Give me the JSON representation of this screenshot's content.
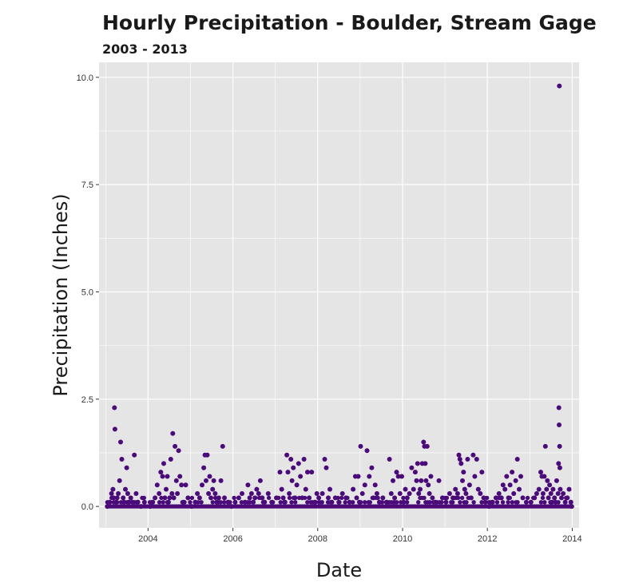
{
  "chart_data": {
    "type": "scatter",
    "title": "Hourly Precipitation - Boulder, Stream Gage",
    "subtitle": "2003 - 2013",
    "xlabel": "Date",
    "ylabel": "Precipitation (Inches)",
    "x_axis_type": "date",
    "xlim": [
      "2002-11-05",
      "2014-03-01"
    ],
    "ylim": [
      -0.5,
      10.35
    ],
    "x_ticks": [
      {
        "value": "2004-01-01",
        "label": "2004"
      },
      {
        "value": "2006-01-01",
        "label": "2006"
      },
      {
        "value": "2008-01-01",
        "label": "2008"
      },
      {
        "value": "2010-01-01",
        "label": "2010"
      },
      {
        "value": "2012-01-01",
        "label": "2012"
      },
      {
        "value": "2014-01-01",
        "label": "2014"
      }
    ],
    "y_ticks": [
      {
        "value": 0,
        "label": "0.0"
      },
      {
        "value": 2.5,
        "label": "2.5"
      },
      {
        "value": 5,
        "label": "5.0"
      },
      {
        "value": 7.5,
        "label": "7.5"
      },
      {
        "value": 10,
        "label": "10.0"
      }
    ],
    "grid": true,
    "panel_background": "#e5e5e5",
    "grid_color": "#ffffff",
    "point_color": "#4b0a7a",
    "points": [
      {
        "x": "2003-01-15",
        "y": 0.0
      },
      {
        "x": "2003-02-05",
        "y": 0.1
      },
      {
        "x": "2003-02-20",
        "y": 0.3
      },
      {
        "x": "2003-03-05",
        "y": 0.4
      },
      {
        "x": "2003-03-10",
        "y": 0.2
      },
      {
        "x": "2003-03-18",
        "y": 2.3
      },
      {
        "x": "2003-03-22",
        "y": 1.8
      },
      {
        "x": "2003-04-01",
        "y": 0.1
      },
      {
        "x": "2003-04-10",
        "y": 0.2
      },
      {
        "x": "2003-04-20",
        "y": 0.3
      },
      {
        "x": "2003-05-01",
        "y": 0.6
      },
      {
        "x": "2003-05-10",
        "y": 1.5
      },
      {
        "x": "2003-05-20",
        "y": 1.1
      },
      {
        "x": "2003-06-01",
        "y": 0.2
      },
      {
        "x": "2003-06-10",
        "y": 0.1
      },
      {
        "x": "2003-06-20",
        "y": 0.4
      },
      {
        "x": "2003-07-01",
        "y": 0.9
      },
      {
        "x": "2003-07-10",
        "y": 0.3
      },
      {
        "x": "2003-07-20",
        "y": 0.1
      },
      {
        "x": "2003-08-05",
        "y": 0.2
      },
      {
        "x": "2003-08-20",
        "y": 0.1
      },
      {
        "x": "2003-09-05",
        "y": 1.2
      },
      {
        "x": "2003-09-20",
        "y": 0.3
      },
      {
        "x": "2003-10-05",
        "y": 0.1
      },
      {
        "x": "2003-11-01",
        "y": 0.0
      },
      {
        "x": "2003-12-01",
        "y": 0.1
      },
      {
        "x": "2004-01-20",
        "y": 0.0
      },
      {
        "x": "2004-02-10",
        "y": 0.1
      },
      {
        "x": "2004-03-01",
        "y": 0.2
      },
      {
        "x": "2004-03-20",
        "y": 0.5
      },
      {
        "x": "2004-04-05",
        "y": 0.3
      },
      {
        "x": "2004-04-20",
        "y": 0.8
      },
      {
        "x": "2004-05-05",
        "y": 0.7
      },
      {
        "x": "2004-05-15",
        "y": 1.0
      },
      {
        "x": "2004-05-25",
        "y": 0.2
      },
      {
        "x": "2004-06-05",
        "y": 0.4
      },
      {
        "x": "2004-06-15",
        "y": 0.7
      },
      {
        "x": "2004-06-25",
        "y": 0.1
      },
      {
        "x": "2004-07-05",
        "y": 0.2
      },
      {
        "x": "2004-07-15",
        "y": 1.1
      },
      {
        "x": "2004-07-25",
        "y": 0.3
      },
      {
        "x": "2004-08-01",
        "y": 1.7
      },
      {
        "x": "2004-08-10",
        "y": 0.2
      },
      {
        "x": "2004-08-20",
        "y": 1.4
      },
      {
        "x": "2004-09-01",
        "y": 0.6
      },
      {
        "x": "2004-09-10",
        "y": 0.3
      },
      {
        "x": "2004-09-20",
        "y": 1.3
      },
      {
        "x": "2004-10-01",
        "y": 0.7
      },
      {
        "x": "2004-10-15",
        "y": 0.5
      },
      {
        "x": "2004-11-01",
        "y": 0.1
      },
      {
        "x": "2004-11-20",
        "y": 0.5
      },
      {
        "x": "2004-12-10",
        "y": 0.2
      },
      {
        "x": "2005-01-10",
        "y": 0.0
      },
      {
        "x": "2005-02-10",
        "y": 0.1
      },
      {
        "x": "2005-03-01",
        "y": 0.3
      },
      {
        "x": "2005-03-20",
        "y": 0.2
      },
      {
        "x": "2005-04-10",
        "y": 0.5
      },
      {
        "x": "2005-04-25",
        "y": 0.9
      },
      {
        "x": "2005-05-05",
        "y": 1.2
      },
      {
        "x": "2005-05-15",
        "y": 0.6
      },
      {
        "x": "2005-05-25",
        "y": 1.2
      },
      {
        "x": "2005-06-05",
        "y": 0.3
      },
      {
        "x": "2005-06-15",
        "y": 0.7
      },
      {
        "x": "2005-06-25",
        "y": 0.2
      },
      {
        "x": "2005-07-10",
        "y": 0.4
      },
      {
        "x": "2005-07-20",
        "y": 0.6
      },
      {
        "x": "2005-08-01",
        "y": 0.3
      },
      {
        "x": "2005-08-15",
        "y": 0.1
      },
      {
        "x": "2005-09-01",
        "y": 0.2
      },
      {
        "x": "2005-09-20",
        "y": 0.6
      },
      {
        "x": "2005-10-05",
        "y": 1.4
      },
      {
        "x": "2005-10-20",
        "y": 0.2
      },
      {
        "x": "2005-11-20",
        "y": 0.1
      },
      {
        "x": "2005-12-20",
        "y": 0.0
      },
      {
        "x": "2006-01-20",
        "y": 0.1
      },
      {
        "x": "2006-02-20",
        "y": 0.2
      },
      {
        "x": "2006-03-20",
        "y": 0.3
      },
      {
        "x": "2006-04-15",
        "y": 0.1
      },
      {
        "x": "2006-05-10",
        "y": 0.5
      },
      {
        "x": "2006-05-25",
        "y": 0.2
      },
      {
        "x": "2006-06-10",
        "y": 0.3
      },
      {
        "x": "2006-06-25",
        "y": 0.1
      },
      {
        "x": "2006-07-10",
        "y": 0.2
      },
      {
        "x": "2006-07-25",
        "y": 0.4
      },
      {
        "x": "2006-08-10",
        "y": 0.3
      },
      {
        "x": "2006-08-25",
        "y": 0.6
      },
      {
        "x": "2006-09-10",
        "y": 0.2
      },
      {
        "x": "2006-10-01",
        "y": 0.1
      },
      {
        "x": "2006-11-01",
        "y": 0.3
      },
      {
        "x": "2006-12-01",
        "y": 0.1
      },
      {
        "x": "2007-01-10",
        "y": 0.2
      },
      {
        "x": "2007-02-10",
        "y": 0.8
      },
      {
        "x": "2007-02-25",
        "y": 0.4
      },
      {
        "x": "2007-03-10",
        "y": 0.2
      },
      {
        "x": "2007-03-25",
        "y": 0.1
      },
      {
        "x": "2007-04-10",
        "y": 1.2
      },
      {
        "x": "2007-04-20",
        "y": 0.8
      },
      {
        "x": "2007-05-01",
        "y": 0.3
      },
      {
        "x": "2007-05-15",
        "y": 1.1
      },
      {
        "x": "2007-05-25",
        "y": 0.6
      },
      {
        "x": "2007-06-05",
        "y": 0.9
      },
      {
        "x": "2007-06-20",
        "y": 0.2
      },
      {
        "x": "2007-07-05",
        "y": 0.5
      },
      {
        "x": "2007-07-20",
        "y": 1.0
      },
      {
        "x": "2007-08-05",
        "y": 0.7
      },
      {
        "x": "2007-08-20",
        "y": 0.2
      },
      {
        "x": "2007-09-05",
        "y": 1.1
      },
      {
        "x": "2007-09-20",
        "y": 0.4
      },
      {
        "x": "2007-10-05",
        "y": 0.8
      },
      {
        "x": "2007-10-20",
        "y": 0.2
      },
      {
        "x": "2007-11-10",
        "y": 0.8
      },
      {
        "x": "2007-12-10",
        "y": 0.1
      },
      {
        "x": "2007-12-25",
        "y": 0.3
      },
      {
        "x": "2008-01-10",
        "y": 0.2
      },
      {
        "x": "2008-02-10",
        "y": 0.3
      },
      {
        "x": "2008-03-01",
        "y": 1.1
      },
      {
        "x": "2008-03-15",
        "y": 0.9
      },
      {
        "x": "2008-04-01",
        "y": 0.2
      },
      {
        "x": "2008-04-15",
        "y": 0.4
      },
      {
        "x": "2008-05-01",
        "y": 0.1
      },
      {
        "x": "2008-06-01",
        "y": 0.2
      },
      {
        "x": "2008-07-01",
        "y": 0.1
      },
      {
        "x": "2008-08-01",
        "y": 0.3
      },
      {
        "x": "2008-09-01",
        "y": 0.2
      },
      {
        "x": "2008-10-01",
        "y": 0.1
      },
      {
        "x": "2008-11-01",
        "y": 0.4
      },
      {
        "x": "2008-11-20",
        "y": 0.7
      },
      {
        "x": "2008-12-01",
        "y": 0.2
      },
      {
        "x": "2008-12-15",
        "y": 0.7
      },
      {
        "x": "2008-12-25",
        "y": 0.1
      },
      {
        "x": "2009-01-05",
        "y": 1.4
      },
      {
        "x": "2009-01-20",
        "y": 0.3
      },
      {
        "x": "2009-02-10",
        "y": 0.5
      },
      {
        "x": "2009-03-01",
        "y": 1.3
      },
      {
        "x": "2009-03-20",
        "y": 0.7
      },
      {
        "x": "2009-04-10",
        "y": 0.9
      },
      {
        "x": "2009-04-25",
        "y": 0.2
      },
      {
        "x": "2009-05-10",
        "y": 0.5
      },
      {
        "x": "2009-05-25",
        "y": 0.3
      },
      {
        "x": "2009-06-15",
        "y": 0.1
      },
      {
        "x": "2009-07-15",
        "y": 0.2
      },
      {
        "x": "2009-08-15",
        "y": 0.1
      },
      {
        "x": "2009-09-10",
        "y": 1.1
      },
      {
        "x": "2009-09-25",
        "y": 0.3
      },
      {
        "x": "2009-10-10",
        "y": 0.6
      },
      {
        "x": "2009-10-25",
        "y": 0.2
      },
      {
        "x": "2009-11-10",
        "y": 0.8
      },
      {
        "x": "2009-11-25",
        "y": 0.7
      },
      {
        "x": "2009-12-10",
        "y": 0.3
      },
      {
        "x": "2009-12-25",
        "y": 0.7
      },
      {
        "x": "2010-01-10",
        "y": 0.1
      },
      {
        "x": "2010-01-25",
        "y": 0.4
      },
      {
        "x": "2010-02-10",
        "y": 0.2
      },
      {
        "x": "2010-03-01",
        "y": 0.3
      },
      {
        "x": "2010-03-20",
        "y": 0.9
      },
      {
        "x": "2010-04-05",
        "y": 0.4
      },
      {
        "x": "2010-04-20",
        "y": 0.8
      },
      {
        "x": "2010-05-01",
        "y": 0.6
      },
      {
        "x": "2010-05-10",
        "y": 1.0
      },
      {
        "x": "2010-05-20",
        "y": 0.3
      },
      {
        "x": "2010-06-01",
        "y": 0.4
      },
      {
        "x": "2010-06-10",
        "y": 0.6
      },
      {
        "x": "2010-06-20",
        "y": 1.0
      },
      {
        "x": "2010-07-01",
        "y": 1.5
      },
      {
        "x": "2010-07-08",
        "y": 1.4
      },
      {
        "x": "2010-07-15",
        "y": 1.0
      },
      {
        "x": "2010-07-22",
        "y": 0.6
      },
      {
        "x": "2010-08-01",
        "y": 1.4
      },
      {
        "x": "2010-08-10",
        "y": 0.5
      },
      {
        "x": "2010-08-20",
        "y": 0.3
      },
      {
        "x": "2010-09-01",
        "y": 0.7
      },
      {
        "x": "2010-09-15",
        "y": 0.2
      },
      {
        "x": "2010-10-10",
        "y": 0.1
      },
      {
        "x": "2010-11-10",
        "y": 0.6
      },
      {
        "x": "2010-12-10",
        "y": 0.2
      },
      {
        "x": "2011-01-10",
        "y": 0.1
      },
      {
        "x": "2011-02-10",
        "y": 0.3
      },
      {
        "x": "2011-03-10",
        "y": 0.2
      },
      {
        "x": "2011-04-01",
        "y": 0.4
      },
      {
        "x": "2011-04-20",
        "y": 0.3
      },
      {
        "x": "2011-05-01",
        "y": 1.2
      },
      {
        "x": "2011-05-10",
        "y": 1.1
      },
      {
        "x": "2011-05-20",
        "y": 1.0
      },
      {
        "x": "2011-06-01",
        "y": 0.6
      },
      {
        "x": "2011-06-10",
        "y": 0.8
      },
      {
        "x": "2011-06-20",
        "y": 0.4
      },
      {
        "x": "2011-07-01",
        "y": 0.3
      },
      {
        "x": "2011-07-15",
        "y": 1.1
      },
      {
        "x": "2011-08-01",
        "y": 0.5
      },
      {
        "x": "2011-08-15",
        "y": 0.2
      },
      {
        "x": "2011-09-01",
        "y": 1.2
      },
      {
        "x": "2011-09-15",
        "y": 0.7
      },
      {
        "x": "2011-10-01",
        "y": 1.1
      },
      {
        "x": "2011-10-15",
        "y": 0.4
      },
      {
        "x": "2011-11-01",
        "y": 0.3
      },
      {
        "x": "2011-11-15",
        "y": 0.8
      },
      {
        "x": "2011-12-01",
        "y": 0.2
      },
      {
        "x": "2011-12-15",
        "y": 0.1
      },
      {
        "x": "2012-01-15",
        "y": 0.0
      },
      {
        "x": "2012-02-15",
        "y": 0.1
      },
      {
        "x": "2012-03-15",
        "y": 0.2
      },
      {
        "x": "2012-04-10",
        "y": 0.3
      },
      {
        "x": "2012-05-01",
        "y": 0.2
      },
      {
        "x": "2012-05-15",
        "y": 0.5
      },
      {
        "x": "2012-06-01",
        "y": 0.4
      },
      {
        "x": "2012-06-15",
        "y": 0.7
      },
      {
        "x": "2012-07-01",
        "y": 0.2
      },
      {
        "x": "2012-07-15",
        "y": 0.5
      },
      {
        "x": "2012-08-01",
        "y": 0.8
      },
      {
        "x": "2012-08-15",
        "y": 0.3
      },
      {
        "x": "2012-09-01",
        "y": 0.6
      },
      {
        "x": "2012-09-15",
        "y": 1.1
      },
      {
        "x": "2012-10-01",
        "y": 0.4
      },
      {
        "x": "2012-10-15",
        "y": 0.7
      },
      {
        "x": "2012-11-01",
        "y": 0.2
      },
      {
        "x": "2012-12-01",
        "y": 0.1
      },
      {
        "x": "2013-01-10",
        "y": 0.1
      },
      {
        "x": "2013-02-10",
        "y": 0.2
      },
      {
        "x": "2013-03-01",
        "y": 0.3
      },
      {
        "x": "2013-03-20",
        "y": 0.4
      },
      {
        "x": "2013-04-05",
        "y": 0.8
      },
      {
        "x": "2013-04-15",
        "y": 0.7
      },
      {
        "x": "2013-04-25",
        "y": 0.3
      },
      {
        "x": "2013-05-05",
        "y": 0.7
      },
      {
        "x": "2013-05-15",
        "y": 1.4
      },
      {
        "x": "2013-05-25",
        "y": 0.4
      },
      {
        "x": "2013-06-01",
        "y": 0.6
      },
      {
        "x": "2013-06-10",
        "y": 0.2
      },
      {
        "x": "2013-06-20",
        "y": 0.5
      },
      {
        "x": "2013-07-01",
        "y": 0.3
      },
      {
        "x": "2013-07-10",
        "y": 0.1
      },
      {
        "x": "2013-07-20",
        "y": 0.4
      },
      {
        "x": "2013-08-01",
        "y": 0.2
      },
      {
        "x": "2013-08-10",
        "y": 0.1
      },
      {
        "x": "2013-08-20",
        "y": 0.6
      },
      {
        "x": "2013-09-01",
        "y": 0.3
      },
      {
        "x": "2013-09-05",
        "y": 1.0
      },
      {
        "x": "2013-09-08",
        "y": 2.3
      },
      {
        "x": "2013-09-10",
        "y": 1.9
      },
      {
        "x": "2013-09-12",
        "y": 9.8
      },
      {
        "x": "2013-09-14",
        "y": 1.4
      },
      {
        "x": "2013-09-16",
        "y": 0.9
      },
      {
        "x": "2013-09-20",
        "y": 0.4
      },
      {
        "x": "2013-10-01",
        "y": 0.2
      },
      {
        "x": "2013-10-15",
        "y": 0.3
      },
      {
        "x": "2013-11-01",
        "y": 0.1
      },
      {
        "x": "2013-11-20",
        "y": 0.2
      },
      {
        "x": "2013-12-05",
        "y": 0.4
      },
      {
        "x": "2013-12-20",
        "y": 0.1
      },
      {
        "x": "2013-12-28",
        "y": 0.0
      }
    ]
  }
}
